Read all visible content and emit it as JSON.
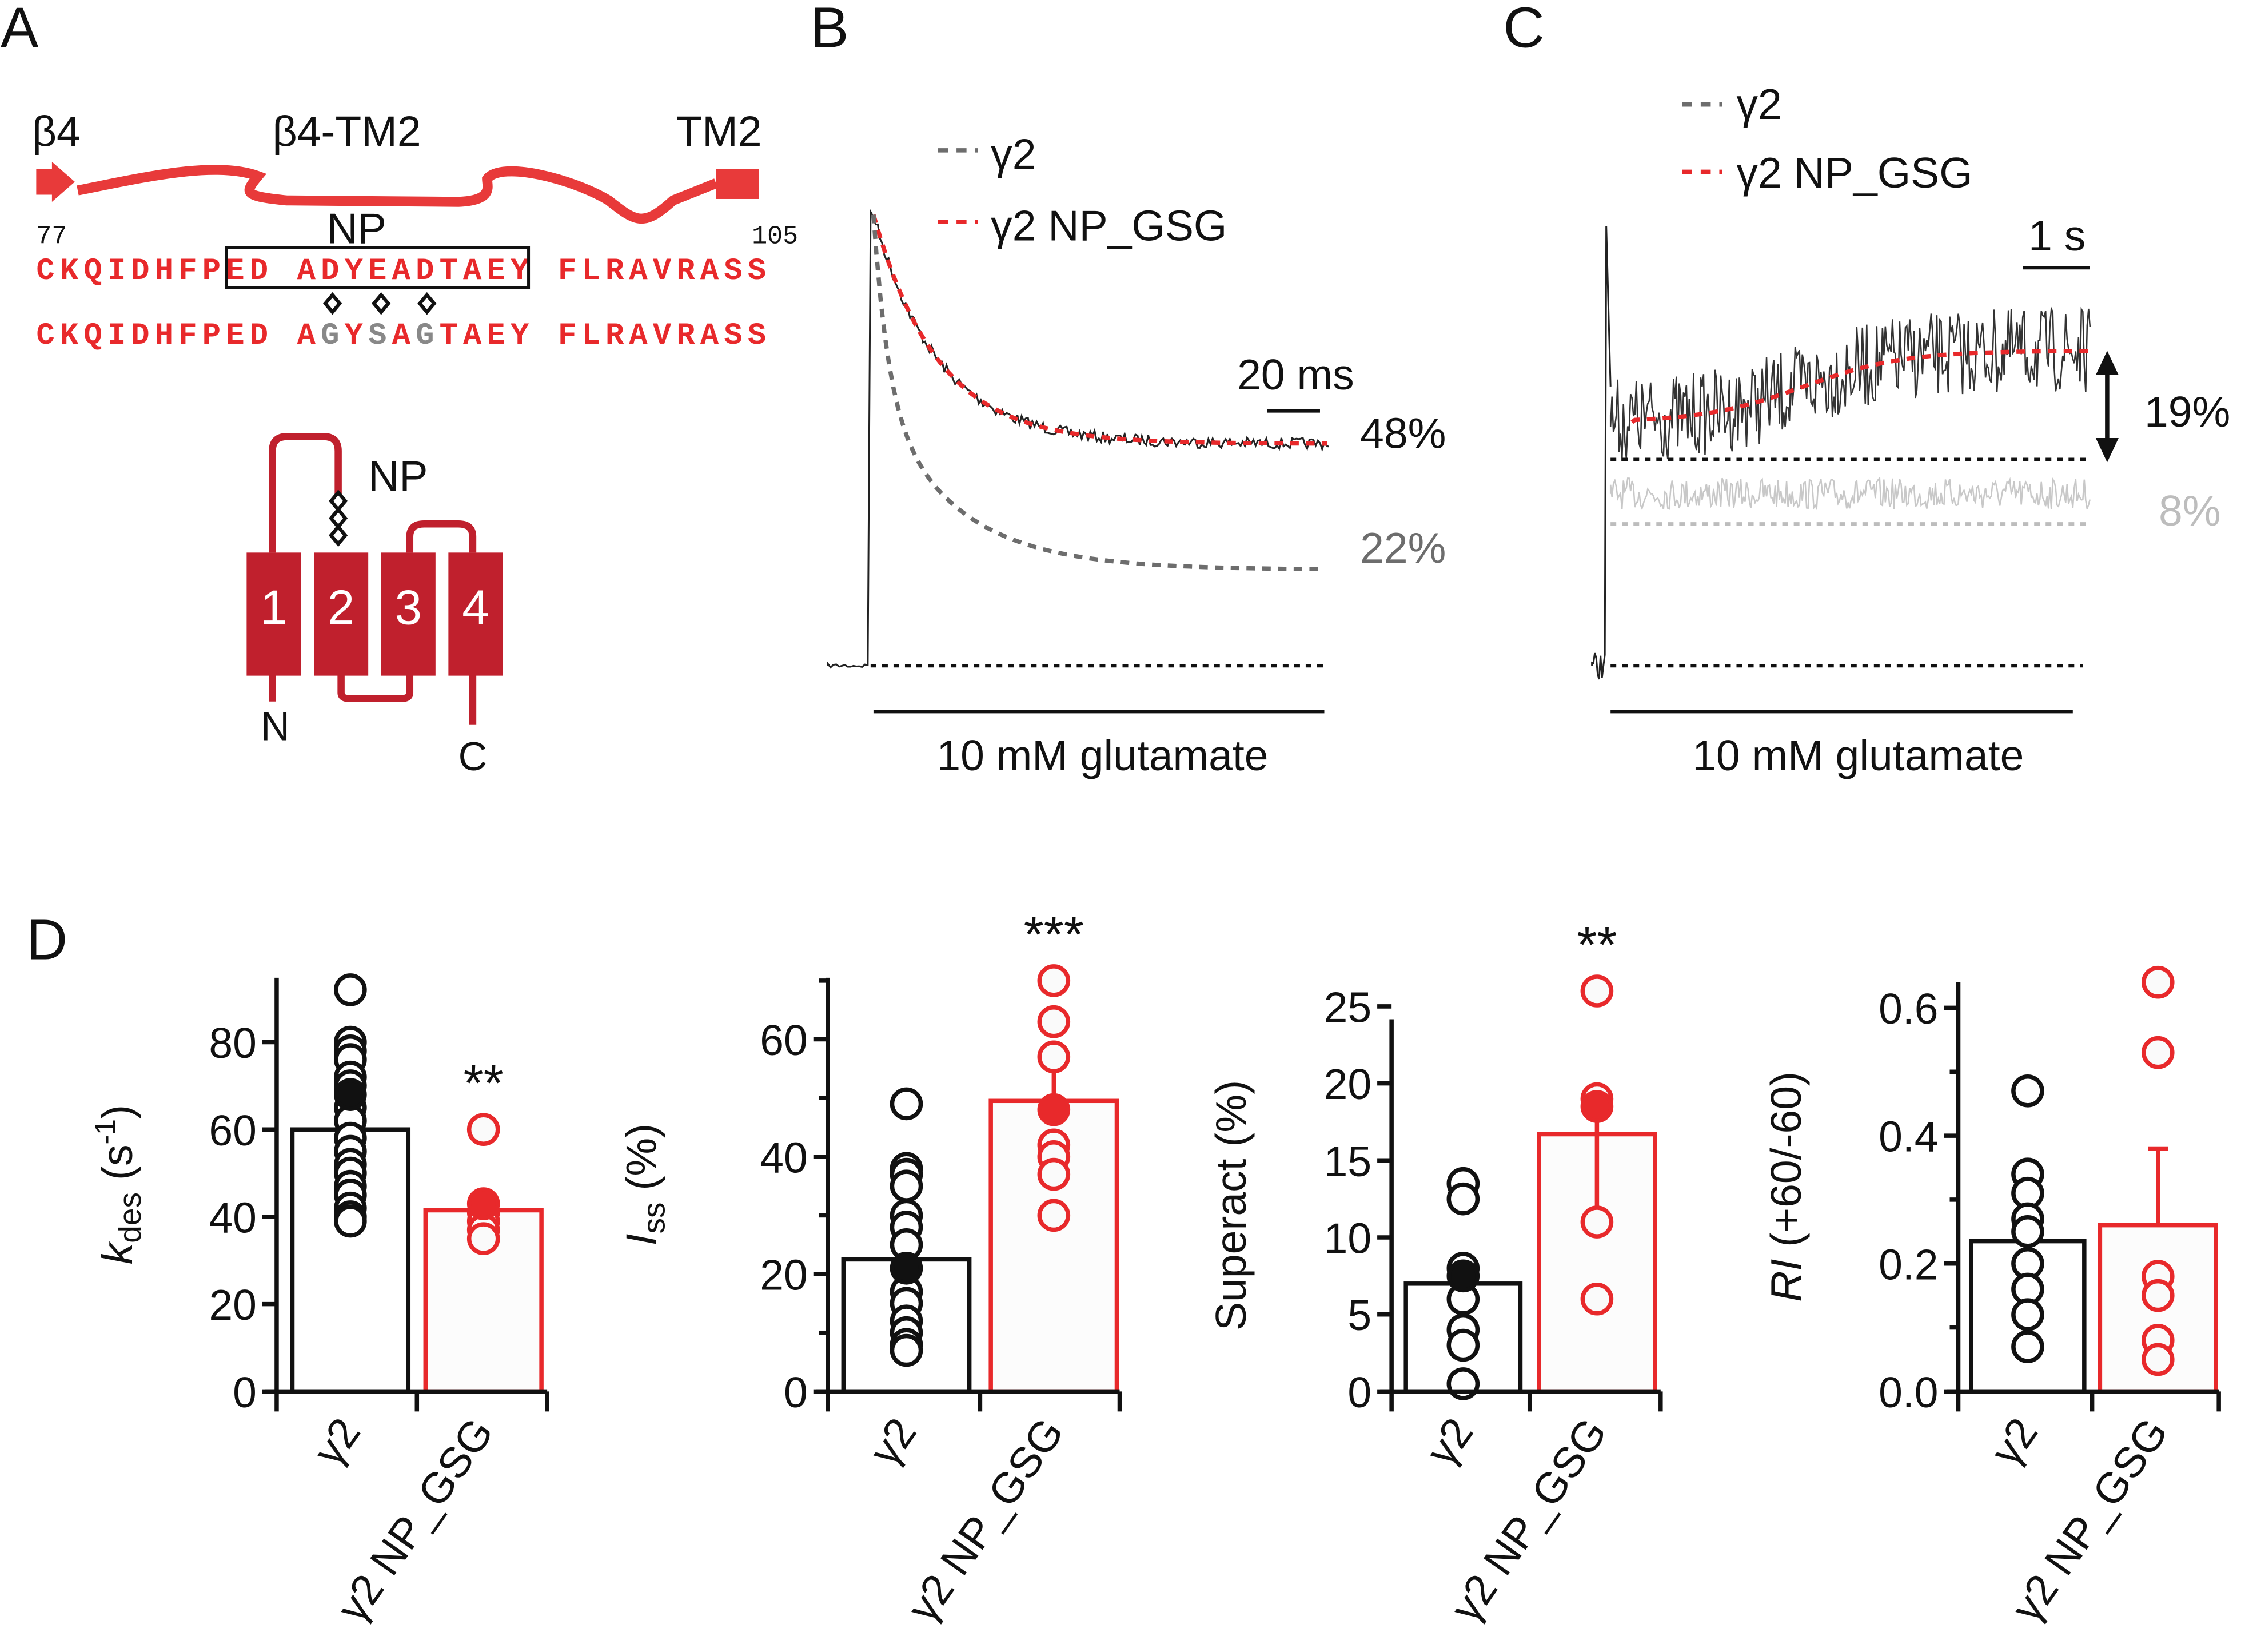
{
  "colors": {
    "red": "#e8292b",
    "grey": "#6d6d6d",
    "lightgrey": "#bdbdbd",
    "black": "#111111"
  },
  "panel_labels": [
    "A",
    "B",
    "C",
    "D"
  ],
  "panelA": {
    "labels": {
      "b4": "β4",
      "loop": "β4-TM2",
      "tm2": "TM2",
      "np": "NP",
      "start": "77",
      "end": "105"
    },
    "seq_wt": "CKQIDHFPED ADYEADTAEY FLRAVRASS",
    "seq_mut": {
      "pre": "CKQIDHFPED A",
      "g1": "G",
      "y": "Y",
      "s": "S",
      "a": "A",
      "g2": "G",
      "post": "TAEY FLRAVRASS"
    },
    "topology": {
      "helices": [
        "1",
        "2",
        "3",
        "4"
      ],
      "np": "NP",
      "n": "N",
      "c": "C"
    }
  },
  "panelB": {
    "legend": [
      "γ2",
      "γ2 NP_GSG"
    ],
    "scale": "20 ms",
    "pct_mut": "48%",
    "pct_wt": "22%",
    "stim": "10 mM glutamate"
  },
  "panelC": {
    "legend": [
      "γ2",
      "γ2 NP_GSG"
    ],
    "scale": "1 s",
    "pct_mut": "19%",
    "pct_wt": "8%",
    "stim": "10 mM glutamate"
  },
  "chart_data": [
    {
      "type": "bar",
      "categories": [
        "γ2",
        "γ2 NP_GSG"
      ],
      "ylabel_main": "k",
      "ylabel_sub": "des",
      "ylabel_unit": " (s",
      "ylabel_sup": "-1",
      "ylabel_close": ")",
      "ylim": [
        0,
        95
      ],
      "yticks": [
        0,
        20,
        40,
        60,
        80
      ],
      "tick_labels": [
        "0",
        "20",
        "40",
        "60",
        "80"
      ],
      "means": [
        60,
        41.5
      ],
      "filled": [
        68,
        43
      ],
      "errors": [
        null,
        null
      ],
      "significance": "**",
      "points": [
        [
          92,
          80,
          78,
          76,
          72,
          70,
          65,
          62,
          58,
          55,
          52,
          50,
          47,
          45,
          42,
          40,
          39
        ],
        [
          60,
          41,
          39,
          37,
          35
        ]
      ]
    },
    {
      "type": "bar",
      "categories": [
        "γ2",
        "γ2 NP_GSG"
      ],
      "ylabel_main": "I",
      "ylabel_sub": "ss",
      "ylabel_unit": " (%)",
      "ylim": [
        0,
        70
      ],
      "yticks": [
        0,
        20,
        40,
        60
      ],
      "minor_ticks": [
        10,
        30,
        50,
        70
      ],
      "tick_labels": [
        "0",
        "20",
        "40",
        "60"
      ],
      "means": [
        22.5,
        49.5
      ],
      "filled": [
        21,
        48
      ],
      "errors": [
        null,
        57
      ],
      "significance": "***",
      "points": [
        [
          49,
          38,
          37,
          35,
          30,
          28,
          25,
          17,
          15,
          12,
          10,
          8,
          7
        ],
        [
          70,
          63,
          57,
          42,
          40,
          37,
          30
        ]
      ]
    },
    {
      "type": "bar",
      "categories": [
        "γ2",
        "γ2 NP_GSG"
      ],
      "ylabel_main": "Superact (%)",
      "ylim": [
        0,
        25
      ],
      "yticks": [
        0,
        5,
        10,
        15,
        20,
        25
      ],
      "tick_labels": [
        "0",
        "5",
        "10",
        "15",
        "20",
        "25"
      ],
      "means": [
        7,
        16.7
      ],
      "filled": [
        7.5,
        18.5
      ],
      "errors": [
        null,
        11.5
      ],
      "significance": "**",
      "points": [
        [
          13.5,
          12.5,
          8,
          6,
          4,
          3,
          0.5
        ],
        [
          26,
          19,
          11,
          6
        ]
      ]
    },
    {
      "type": "bar",
      "categories": [
        "γ2",
        "γ2 NP_GSG"
      ],
      "ylabel_main": "RI",
      "ylabel_unit": " (+60/-60)",
      "ylim": [
        0,
        0.65
      ],
      "yticks": [
        0,
        0.2,
        0.4,
        0.6
      ],
      "minor_ticks": [
        0.1,
        0.3,
        0.5
      ],
      "tick_labels": [
        "0.0",
        "0.2",
        "0.4",
        "0.6"
      ],
      "means": [
        0.235,
        0.26
      ],
      "filled": [
        null,
        null
      ],
      "errors": [
        null,
        0.38
      ],
      "significance": "",
      "points": [
        [
          0.47,
          0.34,
          0.31,
          0.27,
          0.25,
          0.2,
          0.16,
          0.12,
          0.07
        ],
        [
          0.64,
          0.53,
          0.18,
          0.15,
          0.08,
          0.05
        ]
      ]
    }
  ]
}
